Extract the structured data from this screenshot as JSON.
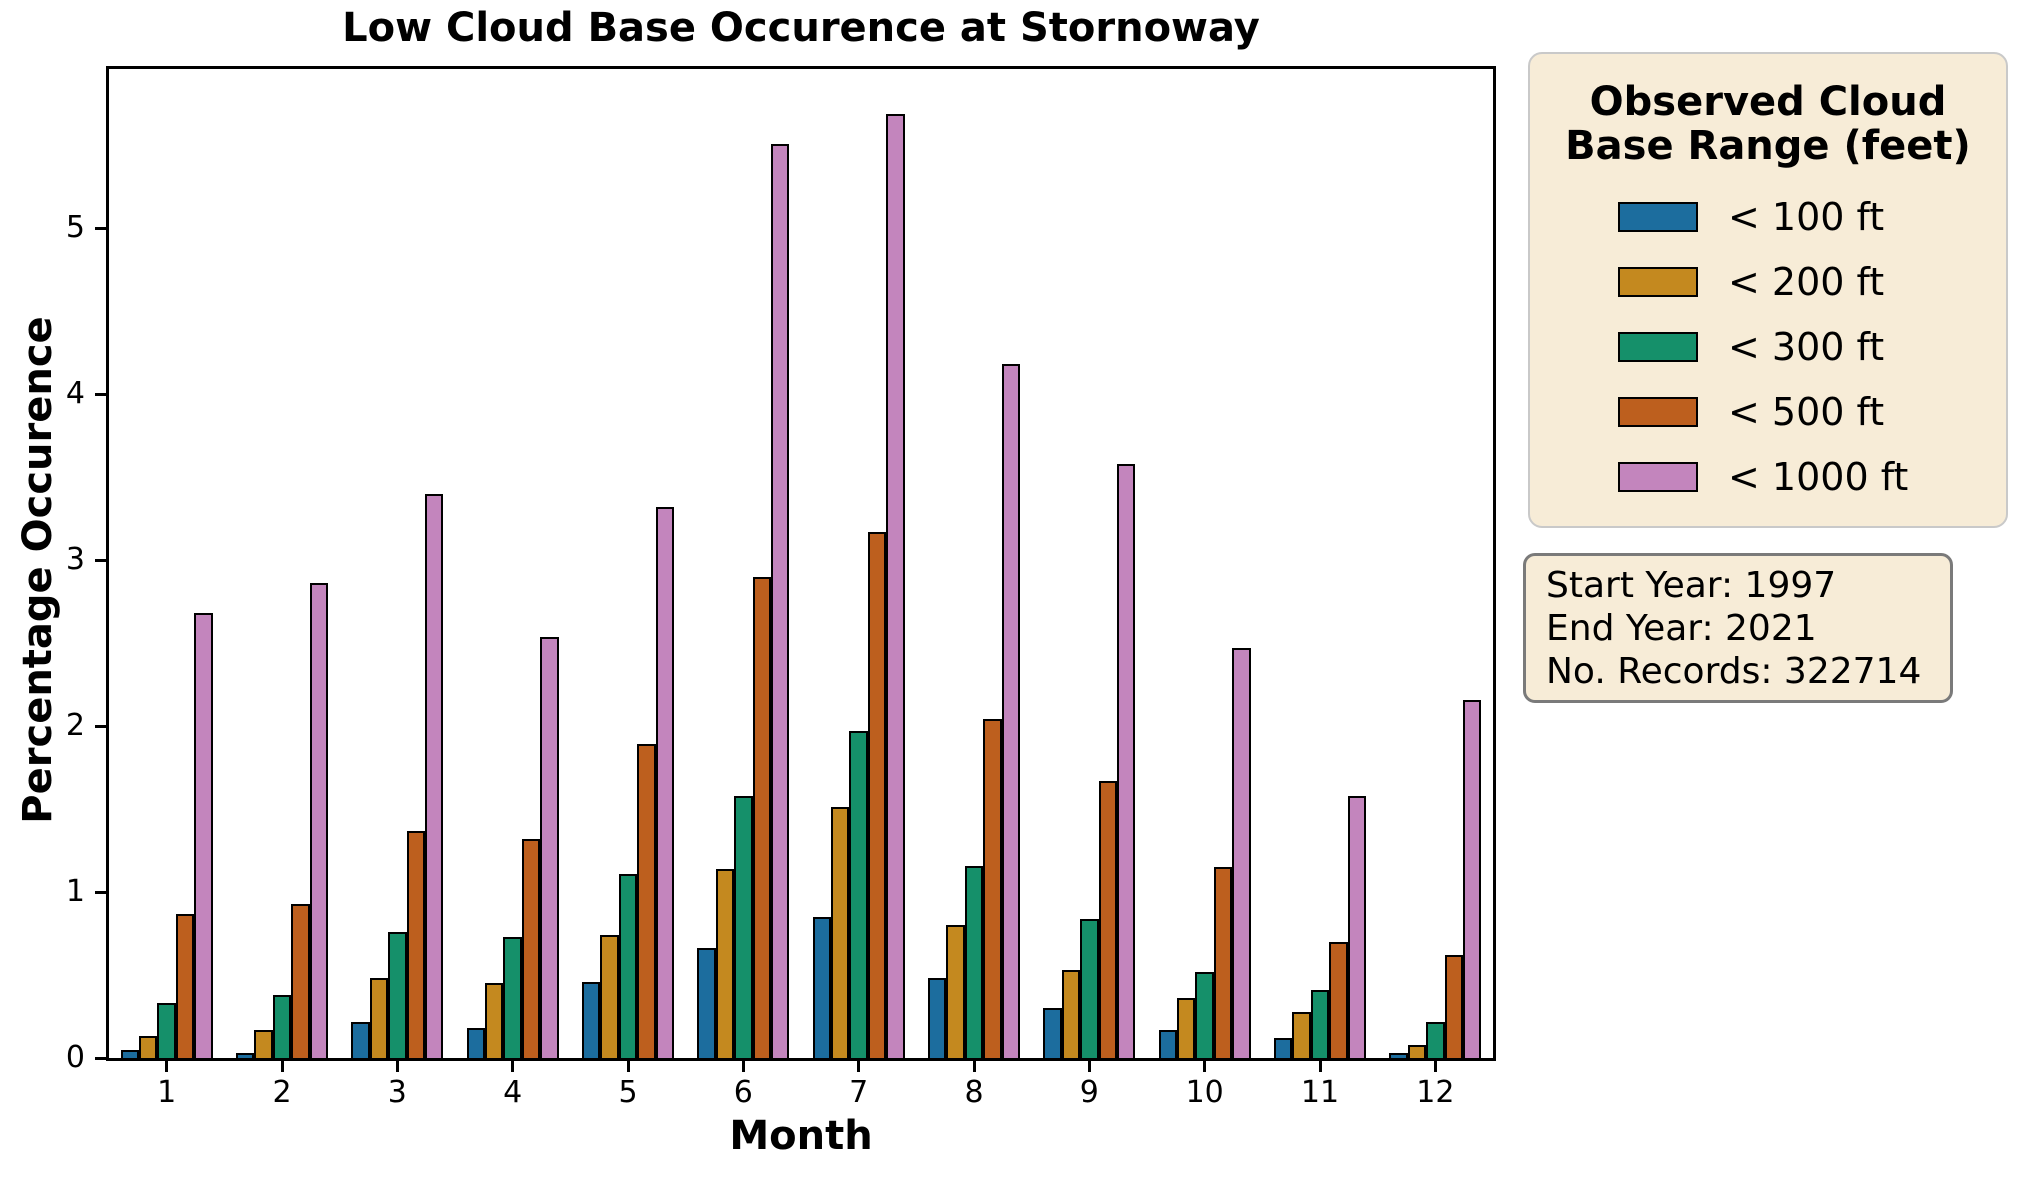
{
  "colors": {
    "panel_bg": "#f7ecd7",
    "legend_border": "#c9c9c9",
    "info_border": "#7a7a7a",
    "bar_edge": "#000000"
  },
  "chart_data": {
    "type": "bar",
    "title": "Low Cloud Base Occurence at Stornoway",
    "xlabel": "Month",
    "ylabel": "Percentage Occurence",
    "categories": [
      "1",
      "2",
      "3",
      "4",
      "5",
      "6",
      "7",
      "8",
      "9",
      "10",
      "11",
      "12"
    ],
    "series": [
      {
        "name": "< 100 ft",
        "color": "#1c6d9e",
        "values": [
          0.05,
          0.03,
          0.22,
          0.18,
          0.46,
          0.66,
          0.85,
          0.48,
          0.3,
          0.17,
          0.12,
          0.03
        ]
      },
      {
        "name": "< 200 ft",
        "color": "#c4891f",
        "values": [
          0.13,
          0.17,
          0.48,
          0.45,
          0.74,
          1.14,
          1.51,
          0.8,
          0.53,
          0.36,
          0.28,
          0.08
        ]
      },
      {
        "name": "< 300 ft",
        "color": "#15906a",
        "values": [
          0.33,
          0.38,
          0.76,
          0.73,
          1.11,
          1.58,
          1.97,
          1.16,
          0.84,
          0.52,
          0.41,
          0.22
        ]
      },
      {
        "name": "< 500 ft",
        "color": "#bd5f1e",
        "values": [
          0.87,
          0.93,
          1.37,
          1.32,
          1.89,
          2.9,
          3.17,
          2.04,
          1.67,
          1.15,
          0.7,
          0.62
        ]
      },
      {
        "name": "< 1000 ft",
        "color": "#c385bd",
        "values": [
          2.68,
          2.86,
          3.4,
          2.54,
          3.32,
          5.51,
          5.69,
          4.18,
          3.58,
          2.47,
          1.58,
          2.16
        ]
      }
    ],
    "ylim": [
      0,
      5.96
    ],
    "y_ticks": [
      0,
      1,
      2,
      3,
      4,
      5
    ],
    "grid": false,
    "legend_title": "Observed Cloud\nBase Range (feet)",
    "legend_position": "outside-upper-right"
  },
  "annotation_box": {
    "start_year": "Start Year: 1997",
    "end_year": "End Year: 2021",
    "records": "No. Records: 322714"
  }
}
